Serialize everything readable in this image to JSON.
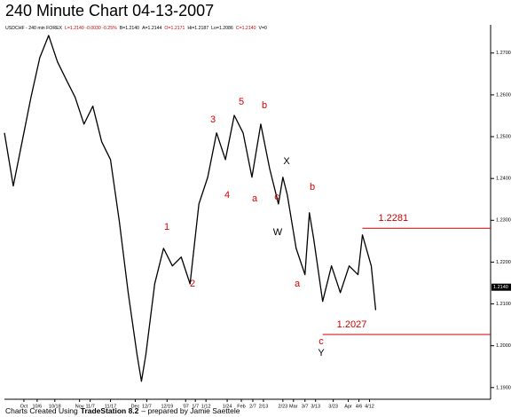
{
  "chart_data": {
    "type": "line",
    "title": "240 Minute Chart 04-13-2007",
    "header": [
      "USDCHF - 240 min FOREX",
      "L=1.2140 -0.0030 -0.25%",
      "B=1.2140",
      "A=1.2144",
      "O=1.2171",
      "Hi=1.2187",
      "Lo=1.2086",
      "C=1.2140",
      "V=0"
    ],
    "footer": [
      "Charts Created Using",
      "TradeStation 8.2",
      "– prepared by Jamie Saettele"
    ],
    "series": [
      {
        "name": "USDCHF",
        "color": "#000000",
        "x": [
          0,
          2,
          4,
          6,
          8,
          10,
          12,
          14,
          16,
          18,
          20,
          22,
          24,
          26,
          28,
          30,
          31,
          32,
          34,
          36,
          38,
          40,
          42,
          44,
          46,
          48,
          50,
          52,
          54,
          56,
          58,
          60,
          62,
          63,
          64,
          66,
          68,
          69,
          70,
          72,
          74,
          76,
          78,
          80,
          81,
          83,
          84
        ],
        "values": [
          1.2509,
          1.2382,
          1.2488,
          1.2594,
          1.2689,
          1.2742,
          1.2679,
          1.2636,
          1.2594,
          1.253,
          1.2573,
          1.2488,
          1.2445,
          1.2297,
          1.2127,
          1.1979,
          1.1915,
          1.1979,
          1.2148,
          1.2233,
          1.2191,
          1.2212,
          1.2148,
          1.2339,
          1.2403,
          1.2509,
          1.2445,
          1.2551,
          1.2509,
          1.2403,
          1.253,
          1.2424,
          1.2339,
          1.2403,
          1.2361,
          1.2233,
          1.217,
          1.2318,
          1.2254,
          1.2106,
          1.2191,
          1.2127,
          1.2191,
          1.217,
          1.2265,
          1.2191,
          1.2085
        ]
      }
    ],
    "xlim": [
      0,
      109
    ],
    "xticks": [
      {
        "value": 4.4,
        "label": "Oct"
      },
      {
        "value": 7.4,
        "label": "10/6"
      },
      {
        "value": 11.4,
        "label": "10/18"
      },
      {
        "value": 17,
        "label": "Nov"
      },
      {
        "value": 19.4,
        "label": "11/7"
      },
      {
        "value": 24,
        "label": "11/17"
      },
      {
        "value": 29.6,
        "label": "Dec"
      },
      {
        "value": 32.2,
        "label": "12/7"
      },
      {
        "value": 36.8,
        "label": "12/19"
      },
      {
        "value": 41,
        "label": "'07"
      },
      {
        "value": 43.2,
        "label": "1/7"
      },
      {
        "value": 45.6,
        "label": "1/12"
      },
      {
        "value": 50.4,
        "label": "1/24"
      },
      {
        "value": 53.6,
        "label": "Feb"
      },
      {
        "value": 56.2,
        "label": "2/7"
      },
      {
        "value": 58.6,
        "label": "2/13"
      },
      {
        "value": 63,
        "label": "2/23"
      },
      {
        "value": 65.4,
        "label": "Mar"
      },
      {
        "value": 68,
        "label": "3/7"
      },
      {
        "value": 70.4,
        "label": "3/13"
      },
      {
        "value": 74.4,
        "label": "3/23"
      },
      {
        "value": 77.8,
        "label": "Apr"
      },
      {
        "value": 80.2,
        "label": "4/6"
      },
      {
        "value": 82.6,
        "label": "4/12"
      }
    ],
    "ylim": [
      1.1872,
      1.2795
    ],
    "yticks": [
      {
        "value": 1.27,
        "label": "1.2700"
      },
      {
        "value": 1.26,
        "label": "1.2600"
      },
      {
        "value": 1.25,
        "label": "1.2500"
      },
      {
        "value": 1.24,
        "label": "1.2400"
      },
      {
        "value": 1.23,
        "label": "1.2300"
      },
      {
        "value": 1.22,
        "label": "1.2200"
      },
      {
        "value": 1.21,
        "label": "1.2100"
      },
      {
        "value": 1.2,
        "label": "1.2000"
      },
      {
        "value": 1.19,
        "label": "1.1900"
      }
    ],
    "last": {
      "value": 1.214,
      "label": "1.2140"
    },
    "levels": [
      {
        "value": 1.2281,
        "label": "1.2281",
        "from": 81,
        "color": "#cc0000"
      },
      {
        "value": 1.2027,
        "label": "1.2027",
        "from": 72,
        "color": "#cc0000"
      }
    ],
    "annotations": [
      {
        "text": "1",
        "color": "#dd0000"
      },
      {
        "text": "2",
        "color": "#dd0000"
      },
      {
        "text": "3",
        "color": "#dd0000"
      },
      {
        "text": "4",
        "color": "#dd0000"
      },
      {
        "text": "5",
        "color": "#dd0000"
      },
      {
        "text": "a",
        "color": "#dd0000"
      },
      {
        "text": "b",
        "color": "#dd0000"
      },
      {
        "text": "c",
        "color": "#dd0000"
      },
      {
        "text": "X",
        "color": "#000000"
      },
      {
        "text": "W",
        "color": "#000000"
      },
      {
        "text": "b",
        "color": "#dd0000"
      },
      {
        "text": "a",
        "color": "#dd0000"
      },
      {
        "text": "c",
        "color": "#dd0000"
      },
      {
        "text": "Y",
        "color": "#000000"
      }
    ]
  }
}
